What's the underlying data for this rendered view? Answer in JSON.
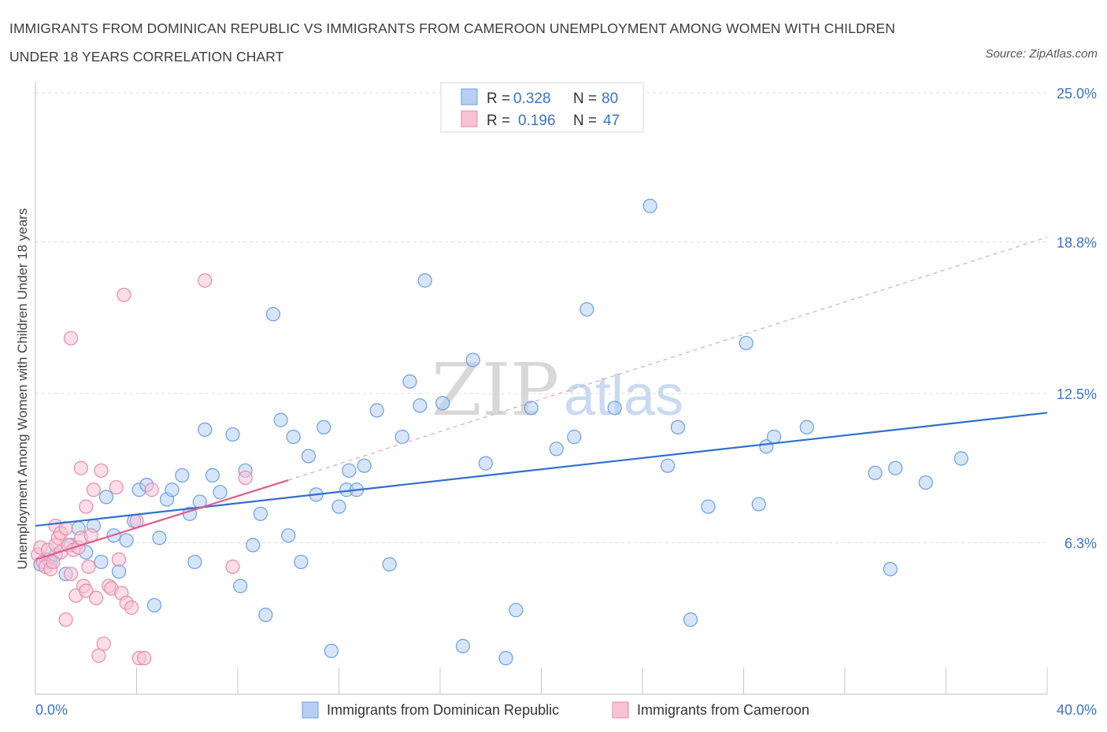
{
  "title": "IMMIGRANTS FROM DOMINICAN REPUBLIC VS IMMIGRANTS FROM CAMEROON UNEMPLOYMENT AMONG WOMEN WITH CHILDREN UNDER 18 YEARS CORRELATION CHART",
  "source": "Source: ZipAtlas.com",
  "watermark": {
    "zip": "ZIP",
    "atlas": "atlas"
  },
  "legend": {
    "rows": [
      {
        "r_label": "R =",
        "r_value": "0.328",
        "n_label": "N =",
        "n_value": "80"
      },
      {
        "r_label": "R =",
        "r_value": "0.196",
        "n_label": "N =",
        "n_value": "47"
      }
    ]
  },
  "bottom_legend": [
    "Immigrants from Dominican Republic",
    "Immigrants from Cameroon"
  ],
  "chart_data": {
    "type": "scatter",
    "title": "IMMIGRANTS FROM DOMINICAN REPUBLIC VS IMMIGRANTS FROM CAMEROON UNEMPLOYMENT AMONG WOMEN WITH CHILDREN UNDER 18 YEARS CORRELATION CHART",
    "xlabel": "",
    "ylabel": "Unemployment Among Women with Children Under 18 years",
    "xlim": [
      0,
      40
    ],
    "ylim": [
      0,
      25
    ],
    "x_tick_labels": [
      "0.0%",
      "40.0%"
    ],
    "y_tick_values": [
      6.3,
      12.5,
      18.8,
      25.0
    ],
    "y_tick_labels": [
      "6.3%",
      "12.5%",
      "18.8%",
      "25.0%"
    ],
    "grid": true,
    "legend_position": "top-center",
    "series": [
      {
        "name": "Immigrants from Dominican Republic",
        "color": "#6a9fe6",
        "fill": "#b7cff2",
        "r": 0.328,
        "n": 80,
        "trend": {
          "x0": 0,
          "y0": 7.0,
          "x1": 40,
          "y1": 11.7
        },
        "points": [
          [
            0.2,
            5.4
          ],
          [
            0.5,
            5.6
          ],
          [
            0.6,
            5.5
          ],
          [
            0.8,
            5.8
          ],
          [
            1.2,
            5.0
          ],
          [
            1.4,
            6.2
          ],
          [
            1.7,
            6.9
          ],
          [
            2.0,
            5.9
          ],
          [
            2.3,
            7.0
          ],
          [
            2.6,
            5.5
          ],
          [
            2.8,
            8.2
          ],
          [
            3.1,
            6.6
          ],
          [
            3.3,
            5.1
          ],
          [
            3.6,
            6.4
          ],
          [
            3.9,
            7.2
          ],
          [
            4.1,
            8.5
          ],
          [
            4.4,
            8.7
          ],
          [
            4.7,
            3.7
          ],
          [
            4.9,
            6.5
          ],
          [
            5.2,
            8.1
          ],
          [
            5.4,
            8.5
          ],
          [
            5.8,
            9.1
          ],
          [
            6.1,
            7.5
          ],
          [
            6.3,
            5.5
          ],
          [
            6.5,
            8.0
          ],
          [
            6.7,
            11.0
          ],
          [
            7.0,
            9.1
          ],
          [
            7.3,
            8.4
          ],
          [
            7.8,
            10.8
          ],
          [
            8.1,
            4.5
          ],
          [
            8.3,
            9.3
          ],
          [
            8.6,
            6.2
          ],
          [
            8.9,
            7.5
          ],
          [
            9.1,
            3.3
          ],
          [
            9.4,
            15.8
          ],
          [
            9.7,
            11.4
          ],
          [
            10.0,
            6.6
          ],
          [
            10.2,
            10.7
          ],
          [
            10.5,
            5.5
          ],
          [
            10.8,
            9.9
          ],
          [
            11.1,
            8.3
          ],
          [
            11.4,
            11.1
          ],
          [
            11.7,
            1.8
          ],
          [
            12.0,
            7.8
          ],
          [
            12.3,
            8.5
          ],
          [
            12.4,
            9.3
          ],
          [
            12.7,
            8.5
          ],
          [
            13.0,
            9.5
          ],
          [
            13.5,
            11.8
          ],
          [
            14.0,
            5.4
          ],
          [
            14.5,
            10.7
          ],
          [
            14.8,
            13.0
          ],
          [
            15.2,
            12.0
          ],
          [
            15.4,
            17.2
          ],
          [
            16.1,
            12.1
          ],
          [
            16.9,
            2.0
          ],
          [
            17.3,
            13.9
          ],
          [
            17.8,
            9.6
          ],
          [
            18.6,
            1.5
          ],
          [
            19.0,
            3.5
          ],
          [
            19.6,
            11.9
          ],
          [
            20.6,
            10.2
          ],
          [
            21.3,
            10.7
          ],
          [
            21.8,
            16.0
          ],
          [
            22.9,
            11.9
          ],
          [
            24.3,
            20.3
          ],
          [
            25.0,
            9.5
          ],
          [
            25.4,
            11.1
          ],
          [
            25.9,
            3.1
          ],
          [
            26.6,
            7.8
          ],
          [
            28.1,
            14.6
          ],
          [
            28.6,
            7.9
          ],
          [
            28.9,
            10.3
          ],
          [
            29.2,
            10.7
          ],
          [
            30.5,
            11.1
          ],
          [
            33.2,
            9.2
          ],
          [
            33.8,
            5.2
          ],
          [
            34.0,
            9.4
          ],
          [
            35.2,
            8.8
          ],
          [
            36.6,
            9.8
          ]
        ]
      },
      {
        "name": "Immigrants from Cameroon",
        "color": "#e88aaa",
        "fill": "#f7c3d4",
        "r": 0.196,
        "n": 47,
        "trend": {
          "x0": 0,
          "y0": 5.6,
          "x1": 10.0,
          "y1": 8.9
        },
        "trend_extension": {
          "x0": 10.0,
          "y0": 8.9,
          "x1": 40,
          "y1": 19.0
        },
        "points": [
          [
            0.1,
            5.8
          ],
          [
            0.2,
            6.1
          ],
          [
            0.3,
            5.5
          ],
          [
            0.4,
            5.3
          ],
          [
            0.5,
            6.0
          ],
          [
            0.6,
            5.2
          ],
          [
            0.7,
            5.5
          ],
          [
            0.8,
            6.2
          ],
          [
            0.8,
            7.0
          ],
          [
            0.9,
            6.5
          ],
          [
            1.0,
            6.7
          ],
          [
            1.0,
            5.9
          ],
          [
            1.2,
            6.9
          ],
          [
            1.3,
            6.2
          ],
          [
            1.4,
            5.0
          ],
          [
            1.4,
            14.8
          ],
          [
            1.5,
            6.0
          ],
          [
            1.6,
            4.1
          ],
          [
            1.7,
            6.1
          ],
          [
            1.8,
            6.5
          ],
          [
            1.8,
            9.4
          ],
          [
            1.9,
            4.5
          ],
          [
            2.0,
            4.3
          ],
          [
            2.0,
            7.8
          ],
          [
            2.1,
            5.3
          ],
          [
            2.2,
            6.6
          ],
          [
            2.3,
            8.5
          ],
          [
            2.4,
            4.0
          ],
          [
            2.5,
            1.6
          ],
          [
            2.6,
            9.3
          ],
          [
            2.7,
            2.1
          ],
          [
            2.9,
            4.5
          ],
          [
            3.0,
            4.4
          ],
          [
            3.2,
            8.6
          ],
          [
            3.3,
            5.6
          ],
          [
            3.4,
            4.2
          ],
          [
            3.5,
            16.6
          ],
          [
            3.6,
            3.8
          ],
          [
            3.8,
            3.6
          ],
          [
            4.0,
            7.2
          ],
          [
            4.1,
            1.5
          ],
          [
            4.3,
            1.5
          ],
          [
            4.6,
            8.5
          ],
          [
            6.7,
            17.2
          ],
          [
            7.8,
            5.3
          ],
          [
            8.3,
            9.0
          ],
          [
            1.2,
            3.1
          ]
        ]
      }
    ]
  }
}
